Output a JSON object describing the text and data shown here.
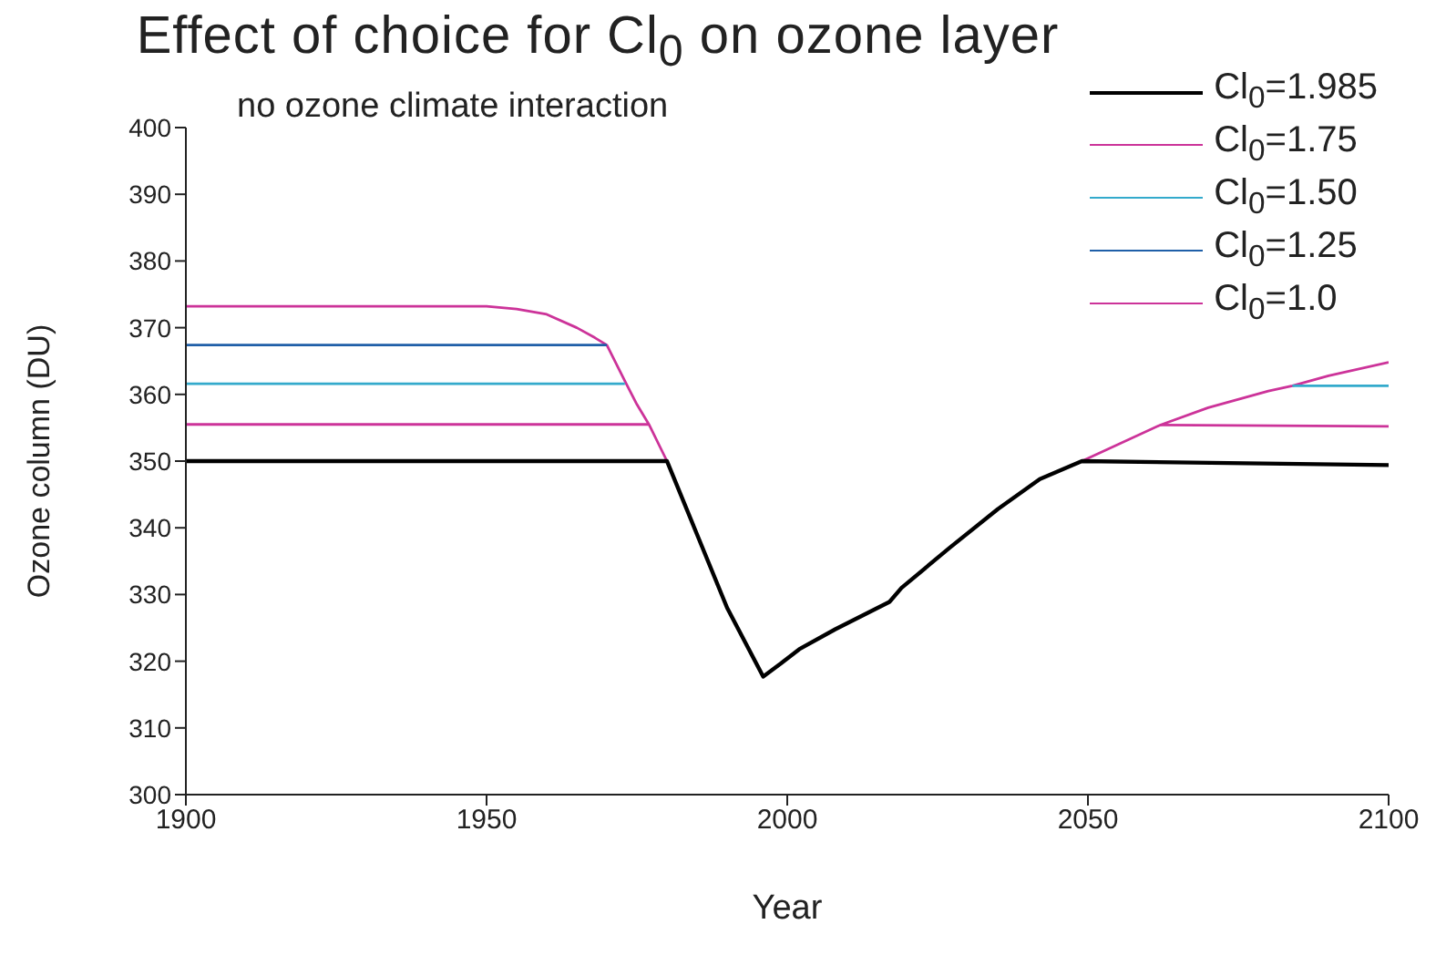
{
  "chart_data": {
    "type": "line",
    "title": "Effect of choice for Cl$_{0}$ on ozone layer",
    "subtitle": "no ozone climate interaction",
    "xlabel": "Year",
    "ylabel": "Ozone column (DU)",
    "xlim": [
      1900,
      2100
    ],
    "xticks": [
      1900,
      1950,
      2000,
      2050,
      2100
    ],
    "ylim": [
      300,
      400
    ],
    "yticks": [
      300,
      310,
      320,
      330,
      340,
      350,
      360,
      370,
      380,
      390,
      400
    ],
    "grid": false,
    "legend": "top right",
    "marker": "none",
    "line_style": "solid",
    "series": [
      {
        "name": "Cl$_{0}$=1.985",
        "color": "#000000",
        "x": [
          1900,
          1980,
          1985,
          1990,
          1996,
          1999,
          2002,
          2008,
          2017,
          2019,
          2027,
          2035,
          2042,
          2049,
          2100
        ],
        "values": [
          350,
          350,
          339,
          328,
          317.7,
          319.7,
          321.8,
          324.8,
          328.9,
          331,
          337,
          342.8,
          347.3,
          350,
          349.4
        ]
      },
      {
        "name": "Cl$_{0}$=1.75",
        "color": "#cc3399",
        "x": [
          1900,
          1977,
          1990,
          2062,
          2100
        ],
        "values": [
          355.5,
          355.5,
          null,
          355.4,
          355.2
        ]
      },
      {
        "name": "Cl$_{0}$=1.50",
        "color": "#33aacc",
        "x": [
          1900,
          1973,
          1990,
          2084,
          2100
        ],
        "values": [
          361.6,
          361.6,
          null,
          361.3,
          361.3
        ]
      },
      {
        "name": "Cl$_{0}$=1.25",
        "color": "#1f5fa8",
        "x": [
          1900,
          1970
        ],
        "values": [
          367.4,
          367.4
        ]
      },
      {
        "name": "Cl$_{0}$=1.0",
        "color": "#cc3399",
        "x": [
          1900,
          1950,
          1955,
          1960,
          1965,
          1968,
          1970,
          1973,
          1975,
          1977,
          1980,
          1990,
          2049,
          2055,
          2062,
          2070,
          2080,
          2084,
          2090,
          2100
        ],
        "values": [
          373.2,
          373.2,
          372.8,
          372,
          370,
          368.5,
          367.4,
          362,
          358.5,
          355.5,
          350,
          null,
          350,
          352.5,
          355.4,
          358,
          360.5,
          361.3,
          362.8,
          364.8
        ]
      }
    ]
  }
}
